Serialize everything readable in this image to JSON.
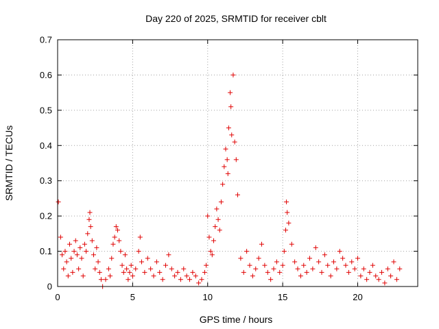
{
  "chart_data": {
    "type": "scatter",
    "title": "Day 220 of 2025, SRMTID for receiver cblt",
    "xlabel": "GPS time / hours",
    "ylabel": "SRMTID / TECUs",
    "xlim": [
      0,
      24
    ],
    "ylim": [
      0,
      0.7
    ],
    "xticks": [
      0,
      5,
      10,
      15,
      20
    ],
    "yticks": [
      0,
      0.1,
      0.2,
      0.3,
      0.4,
      0.5,
      0.6,
      0.7
    ],
    "xtick_labels": [
      "0",
      "5",
      "10",
      "15",
      "20"
    ],
    "ytick_labels": [
      "0",
      "0.1",
      "0.2",
      "0.3",
      "0.4",
      "0.5",
      "0.6",
      "0.7"
    ],
    "grid": true,
    "marker": "plus",
    "color": "#e00000",
    "series": [
      {
        "name": "SRMTID",
        "x": [
          0.05,
          0.2,
          0.3,
          0.4,
          0.5,
          0.6,
          0.7,
          0.8,
          0.9,
          1.0,
          1.1,
          1.2,
          1.3,
          1.4,
          1.5,
          1.6,
          1.7,
          1.8,
          1.9,
          2.0,
          2.1,
          2.15,
          2.2,
          2.3,
          2.4,
          2.5,
          2.6,
          2.7,
          2.8,
          2.9,
          3.0,
          3.2,
          3.4,
          3.5,
          3.6,
          3.7,
          3.8,
          3.9,
          4.0,
          4.1,
          4.2,
          4.3,
          4.4,
          4.5,
          4.6,
          4.7,
          4.8,
          4.9,
          5.0,
          5.2,
          5.4,
          5.5,
          5.6,
          5.8,
          6.0,
          6.2,
          6.4,
          6.6,
          6.8,
          7.0,
          7.2,
          7.4,
          7.6,
          7.8,
          8.0,
          8.2,
          8.4,
          8.6,
          8.8,
          9.0,
          9.2,
          9.4,
          9.6,
          9.8,
          9.9,
          10.0,
          10.1,
          10.2,
          10.3,
          10.4,
          10.5,
          10.6,
          10.7,
          10.8,
          10.9,
          11.0,
          11.1,
          11.2,
          11.3,
          11.35,
          11.4,
          11.5,
          11.55,
          11.6,
          11.7,
          11.8,
          11.9,
          12.0,
          12.2,
          12.4,
          12.6,
          12.8,
          13.0,
          13.2,
          13.4,
          13.6,
          13.8,
          14.0,
          14.2,
          14.4,
          14.6,
          14.8,
          15.0,
          15.1,
          15.2,
          15.25,
          15.3,
          15.4,
          15.6,
          15.8,
          16.0,
          16.2,
          16.4,
          16.6,
          16.8,
          17.0,
          17.2,
          17.4,
          17.6,
          17.8,
          18.0,
          18.2,
          18.4,
          18.6,
          18.8,
          19.0,
          19.2,
          19.4,
          19.6,
          19.8,
          20.0,
          20.2,
          20.4,
          20.6,
          20.8,
          21.0,
          21.2,
          21.4,
          21.6,
          21.8,
          22.0,
          22.2,
          22.4,
          22.6,
          22.8
        ],
        "y": [
          0.24,
          0.14,
          0.09,
          0.05,
          0.1,
          0.07,
          0.03,
          0.12,
          0.08,
          0.04,
          0.1,
          0.13,
          0.09,
          0.05,
          0.11,
          0.08,
          0.03,
          0.12,
          0.1,
          0.15,
          0.19,
          0.21,
          0.17,
          0.13,
          0.09,
          0.05,
          0.11,
          0.07,
          0.04,
          0.02,
          0.0,
          0.02,
          0.05,
          0.03,
          0.08,
          0.12,
          0.14,
          0.17,
          0.16,
          0.13,
          0.1,
          0.06,
          0.04,
          0.09,
          0.05,
          0.02,
          0.04,
          0.06,
          0.03,
          0.05,
          0.1,
          0.14,
          0.07,
          0.04,
          0.08,
          0.05,
          0.03,
          0.07,
          0.04,
          0.02,
          0.06,
          0.09,
          0.05,
          0.03,
          0.04,
          0.02,
          0.05,
          0.03,
          0.02,
          0.04,
          0.03,
          0.01,
          0.02,
          0.04,
          0.06,
          0.2,
          0.14,
          0.1,
          0.09,
          0.13,
          0.17,
          0.22,
          0.19,
          0.16,
          0.24,
          0.29,
          0.34,
          0.39,
          0.36,
          0.32,
          0.45,
          0.55,
          0.51,
          0.43,
          0.6,
          0.41,
          0.36,
          0.26,
          0.08,
          0.04,
          0.1,
          0.06,
          0.03,
          0.05,
          0.08,
          0.12,
          0.06,
          0.04,
          0.02,
          0.05,
          0.07,
          0.04,
          0.06,
          0.1,
          0.16,
          0.24,
          0.21,
          0.18,
          0.12,
          0.07,
          0.05,
          0.03,
          0.06,
          0.04,
          0.08,
          0.05,
          0.11,
          0.07,
          0.04,
          0.09,
          0.06,
          0.03,
          0.07,
          0.05,
          0.1,
          0.08,
          0.06,
          0.04,
          0.07,
          0.05,
          0.08,
          0.03,
          0.05,
          0.02,
          0.04,
          0.06,
          0.03,
          0.02,
          0.04,
          0.01,
          0.05,
          0.03,
          0.07,
          0.02,
          0.05
        ]
      }
    ]
  }
}
